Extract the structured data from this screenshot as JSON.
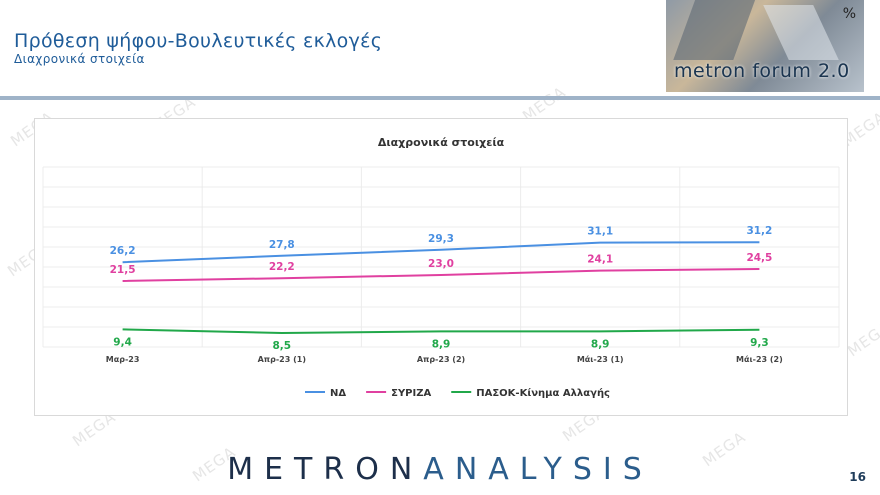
{
  "header": {
    "title": "Πρόθεση ψήφου-Βουλευτικές εκλογές",
    "subtitle": "Διαχρονικά στοιχεία"
  },
  "logo": {
    "text": "metron forum 2.0",
    "percent": "%"
  },
  "watermark": "MEGA",
  "footer": {
    "brand_dark": "METRON",
    "brand_light": "ANALYSIS"
  },
  "page_number": "16",
  "chart_data": {
    "type": "line",
    "title": "Διαχρονικά στοιχεία",
    "categories": [
      "Μαρ-23",
      "Απρ-23 (1)",
      "Απρ-23 (2)",
      "Μάι-23 (1)",
      "Μάι-23 (2)"
    ],
    "series": [
      {
        "name": "ΝΔ",
        "values": [
          26.2,
          27.8,
          29.3,
          31.1,
          31.2
        ],
        "labels": [
          "26,2",
          "27,8",
          "29,3",
          "31,1",
          "31,2"
        ],
        "color": "#4a90e2"
      },
      {
        "name": "ΣΥΡΙΖΑ",
        "values": [
          21.5,
          22.2,
          23.0,
          24.1,
          24.5
        ],
        "labels": [
          "21,5",
          "22,2",
          "23,0",
          "24,1",
          "24,5"
        ],
        "color": "#e040a0"
      },
      {
        "name": "ΠΑΣΟΚ-Κίνημα Αλλαγής",
        "values": [
          9.4,
          8.5,
          8.9,
          8.9,
          9.3
        ],
        "labels": [
          "9,4",
          "8,5",
          "8,9",
          "8,9",
          "9,3"
        ],
        "color": "#21a84a"
      }
    ],
    "ylim": [
      5,
      50
    ],
    "grid": true,
    "legend": "bottom"
  }
}
